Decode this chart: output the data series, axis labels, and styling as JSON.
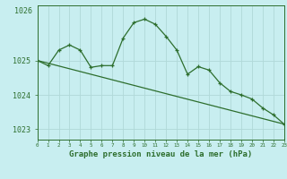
{
  "title": "Graphe pression niveau de la mer (hPa)",
  "background_color": "#c8eef0",
  "line_color": "#2d6e2d",
  "grid_color": "#b0d8d8",
  "x_min": 0,
  "x_max": 23,
  "y_min": 1022.7,
  "y_max": 1026.6,
  "yticks": [
    1023,
    1024,
    1025
  ],
  "ytick_top_label": "1026",
  "ytick_top_val": 1026.55,
  "series_x": [
    0,
    1,
    2,
    3,
    4,
    5,
    6,
    7,
    8,
    9,
    10,
    11,
    12,
    13,
    14,
    15,
    16,
    17,
    18,
    19,
    20,
    21,
    22,
    23
  ],
  "values_main": [
    1025.0,
    1024.85,
    1025.3,
    1025.45,
    1025.3,
    1024.8,
    1024.85,
    1024.85,
    1025.65,
    1026.1,
    1026.2,
    1026.05,
    1025.7,
    1025.3,
    1024.6,
    1024.82,
    1024.72,
    1024.35,
    1024.1,
    1024.0,
    1023.88,
    1023.62,
    1023.42,
    1023.15
  ],
  "trend_x": [
    0,
    23
  ],
  "trend_y": [
    1025.0,
    1023.15
  ]
}
